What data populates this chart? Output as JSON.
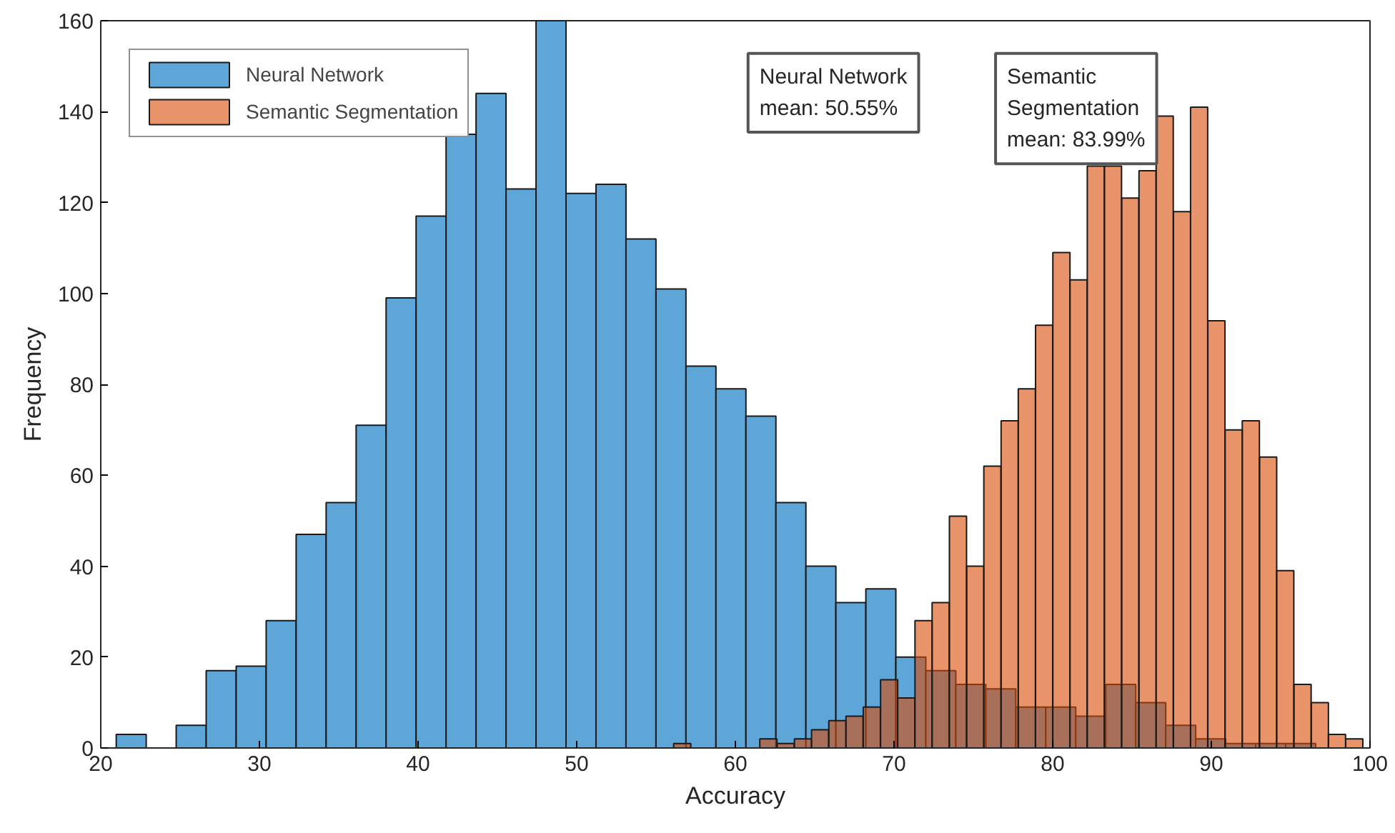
{
  "chart_data": {
    "type": "bar",
    "xlabel": "Accuracy",
    "ylabel": "Frequency",
    "xlim": [
      20,
      100
    ],
    "xticks": [
      20,
      30,
      40,
      50,
      60,
      70,
      80,
      90,
      100
    ],
    "ylim": [
      0,
      160
    ],
    "yticks": [
      0,
      20,
      40,
      60,
      80,
      100,
      120,
      140,
      160
    ],
    "grid": false,
    "legend": "top left",
    "annotations": [
      "Neural Network\nmean: 50.55%",
      "Semantic\nSegmentation\nmean: 83.99%"
    ],
    "series": [
      {
        "name": "Neural Network",
        "color": "#5fa6d8",
        "x": [
          21.92,
          23.81,
          25.7,
          27.59,
          29.48,
          31.37,
          33.26,
          35.15,
          37.04,
          38.93,
          40.82,
          42.71,
          44.6,
          46.49,
          48.38,
          50.27,
          52.16,
          54.05,
          55.94,
          57.83,
          59.72,
          61.61,
          63.5,
          65.39,
          67.28,
          69.17,
          71.06,
          72.95,
          74.84,
          76.73,
          78.62,
          80.51,
          82.4,
          84.29,
          86.18,
          88.07,
          89.96,
          91.85,
          93.74,
          95.63
        ],
        "values": [
          3,
          null,
          5,
          17,
          18,
          28,
          47,
          54,
          71,
          99,
          117,
          135,
          144,
          123,
          160,
          122,
          124,
          112,
          101,
          84,
          79,
          73,
          54,
          40,
          32,
          35,
          20,
          17,
          14,
          13,
          9,
          9,
          7,
          14,
          10,
          5,
          2,
          1,
          1,
          1
        ]
      },
      {
        "name": "Semantic Segmentation",
        "color": "#e8936a",
        "x": [
          56.65,
          57.74,
          58.83,
          59.91,
          61.0,
          62.08,
          63.17,
          64.26,
          65.34,
          66.43,
          67.51,
          68.6,
          69.69,
          70.77,
          71.86,
          72.94,
          74.03,
          75.12,
          76.2,
          77.29,
          78.37,
          79.46,
          80.55,
          81.63,
          82.72,
          83.8,
          84.89,
          85.98,
          87.06,
          88.15,
          89.23,
          90.32,
          91.41,
          92.49,
          93.58,
          94.66,
          95.75,
          96.84,
          97.92,
          99.01
        ],
        "values": [
          1,
          null,
          null,
          null,
          null,
          2,
          1,
          2,
          4,
          6,
          7,
          9,
          15,
          11,
          28,
          32,
          51,
          40,
          62,
          72,
          79,
          93,
          109,
          103,
          128,
          128,
          121,
          127,
          139,
          118,
          141,
          94,
          70,
          72,
          64,
          39,
          14,
          10,
          3,
          2
        ]
      }
    ]
  }
}
